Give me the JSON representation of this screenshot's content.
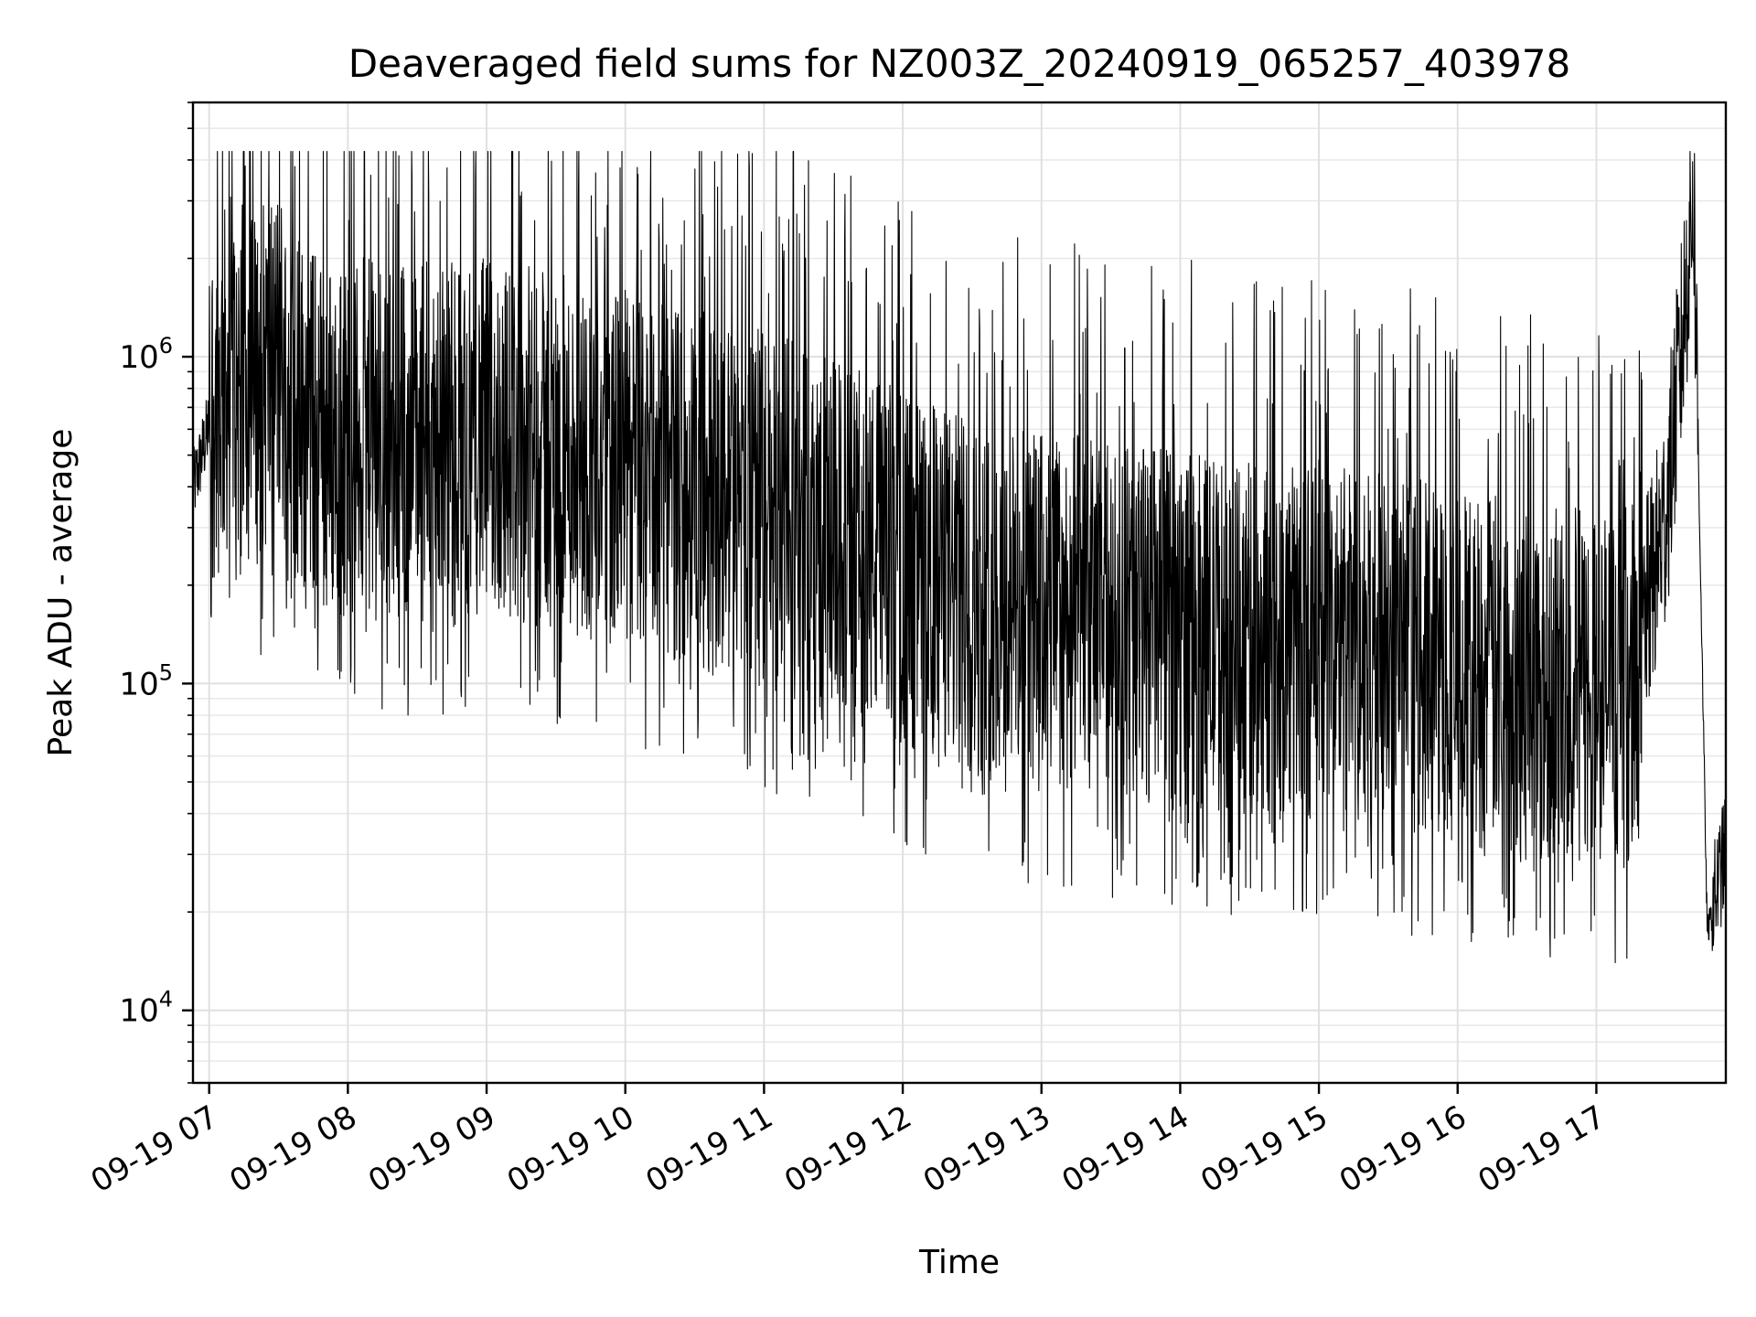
{
  "chart_data": {
    "type": "line",
    "title": "Deaveraged field sums for NZ003Z_20240919_065257_403978",
    "xlabel": "Time",
    "ylabel": "Peak ADU - average",
    "yscale": "log",
    "ylim": [
      6000,
      6000000
    ],
    "xlim": [
      "2024-09-19 06:53",
      "2024-09-19 17:56"
    ],
    "grid": true,
    "line_color": "#000000",
    "x_ticks": [
      "09-19 07",
      "09-19 08",
      "09-19 09",
      "09-19 10",
      "09-19 11",
      "09-19 12",
      "09-19 13",
      "09-19 14",
      "09-19 15",
      "09-19 16",
      "09-19 17"
    ],
    "y_ticks": [
      {
        "value": 10000,
        "base": "10",
        "exp": "4"
      },
      {
        "value": 100000,
        "base": "10",
        "exp": "5"
      },
      {
        "value": 1000000,
        "base": "10",
        "exp": "6"
      }
    ],
    "series": [
      {
        "x": [
          "2024-09-19 06:53",
          "2024-09-19 07:00",
          "2024-09-19 07:10",
          "2024-09-19 07:20",
          "2024-09-19 07:30",
          "2024-09-19 07:40",
          "2024-09-19 07:50",
          "2024-09-19 08:00",
          "2024-09-19 08:30",
          "2024-09-19 09:00",
          "2024-09-19 09:30",
          "2024-09-19 10:00",
          "2024-09-19 10:30",
          "2024-09-19 11:00",
          "2024-09-19 11:30",
          "2024-09-19 12:00",
          "2024-09-19 12:30",
          "2024-09-19 13:00",
          "2024-09-19 13:30",
          "2024-09-19 14:00",
          "2024-09-19 14:30",
          "2024-09-19 15:00",
          "2024-09-19 15:30",
          "2024-09-19 16:00",
          "2024-09-19 16:20",
          "2024-09-19 16:40",
          "2024-09-19 17:00",
          "2024-09-19 17:15",
          "2024-09-19 17:30",
          "2024-09-19 17:37",
          "2024-09-19 17:42",
          "2024-09-19 17:48",
          "2024-09-19 17:56"
        ],
        "values": [
          380000,
          600000,
          800000,
          700000,
          900000,
          600000,
          500000,
          500000,
          500000,
          500000,
          450000,
          400000,
          350000,
          300000,
          250000,
          200000,
          160000,
          150000,
          140000,
          130000,
          120000,
          120000,
          110000,
          100000,
          95000,
          90000,
          85000,
          90000,
          300000,
          1000000,
          3000000,
          17000,
          30000
        ]
      }
    ]
  }
}
